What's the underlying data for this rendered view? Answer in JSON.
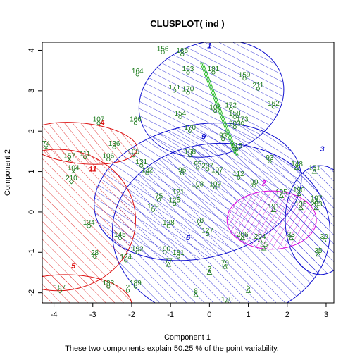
{
  "chart_data": {
    "type": "scatter",
    "title": "CLUSPLOT( ind )",
    "xlabel": "Component 1",
    "ylabel": "Component 2",
    "subtitle": "These two components explain 50.25 % of the point variability.",
    "xlim": [
      -4.3,
      3.2
    ],
    "ylim": [
      -2.25,
      4.2
    ],
    "x_ticks": [
      -4,
      -3,
      -2,
      -1,
      0,
      1,
      2,
      3
    ],
    "y_ticks": [
      -2,
      -1,
      0,
      1,
      2,
      3,
      4
    ],
    "colors": {
      "ellipse_blue": "#1010d0",
      "ellipse_red": "#dd1111",
      "ellipse_magenta": "#dd00dd",
      "points": "#1a7a1a",
      "connector": "#22bb22"
    },
    "clusters": [
      {
        "label": "1",
        "center": [
          0.05,
          2.8
        ],
        "rx": 1.9,
        "ry": 1.4,
        "angle": 18,
        "color": "ellipse_blue",
        "label_pos": [
          0.0,
          4.05
        ]
      },
      {
        "label": "9",
        "center": [
          -0.3,
          0.5
        ],
        "rx": 2.7,
        "ry": 1.65,
        "angle": 12,
        "color": "ellipse_blue",
        "label_pos": [
          -0.15,
          1.8
        ]
      },
      {
        "label": "6",
        "center": [
          0.3,
          -0.5
        ],
        "rx": 2.8,
        "ry": 2.2,
        "angle": 0,
        "color": "ellipse_blue",
        "label_pos": [
          -0.55,
          -0.7
        ]
      },
      {
        "label": "2",
        "center": [
          1.6,
          -0.2
        ],
        "rx": 1.15,
        "ry": 0.72,
        "angle": 0,
        "color": "ellipse_magenta",
        "label_pos": [
          1.4,
          0.65
        ]
      },
      {
        "label": "4",
        "center": [
          -3.3,
          1.7
        ],
        "rx": 1.45,
        "ry": 0.5,
        "angle": -6,
        "color": "ellipse_red",
        "label_pos": [
          -2.75,
          2.15
        ]
      },
      {
        "label": "11",
        "center": [
          -3.9,
          -0.2
        ],
        "rx": 2.0,
        "ry": 1.75,
        "angle": 0,
        "color": "ellipse_red",
        "label_pos": [
          -3.0,
          1.0
        ]
      },
      {
        "label": "5",
        "center": [
          -3.7,
          -2.3
        ],
        "rx": 1.7,
        "ry": 0.75,
        "angle": 0,
        "color": "ellipse_red",
        "label_pos": [
          -3.5,
          -1.4
        ]
      },
      {
        "label": "3",
        "center": [
          2.85,
          -0.2
        ],
        "rx": 0.9,
        "ry": 1.35,
        "angle": 0,
        "color": "ellipse_blue",
        "label_pos": [
          2.9,
          1.5
        ]
      }
    ],
    "connector": {
      "from": [
        -0.2,
        3.7
      ],
      "to": [
        0.7,
        1.4
      ]
    },
    "points": [
      {
        "label": "156",
        "x": -1.2,
        "y": 3.95,
        "shape": "circle"
      },
      {
        "label": "185",
        "x": -0.7,
        "y": 3.9,
        "shape": "circle"
      },
      {
        "label": "164",
        "x": -1.85,
        "y": 3.4,
        "shape": "circle"
      },
      {
        "label": "163",
        "x": -0.55,
        "y": 3.45,
        "shape": "circle"
      },
      {
        "label": "181",
        "x": 0.1,
        "y": 3.45,
        "shape": "circle"
      },
      {
        "label": "159",
        "x": 0.9,
        "y": 3.3,
        "shape": "circle"
      },
      {
        "label": "211",
        "x": 1.25,
        "y": 3.05,
        "shape": "circle"
      },
      {
        "label": "171",
        "x": -0.9,
        "y": 3.0,
        "shape": "circle"
      },
      {
        "label": "170",
        "x": -0.55,
        "y": 2.95,
        "shape": "circle"
      },
      {
        "label": "162",
        "x": 1.65,
        "y": 2.6,
        "shape": "circle"
      },
      {
        "label": "172",
        "x": 0.55,
        "y": 2.55,
        "shape": "circle"
      },
      {
        "label": "108",
        "x": 0.15,
        "y": 2.5,
        "shape": "circle"
      },
      {
        "label": "158",
        "x": 0.65,
        "y": 2.35,
        "shape": "circle"
      },
      {
        "label": "154",
        "x": -0.75,
        "y": 2.35,
        "shape": "circle"
      },
      {
        "label": "173",
        "x": 0.85,
        "y": 2.2,
        "shape": "circle"
      },
      {
        "label": "107",
        "x": -2.85,
        "y": 2.2,
        "shape": "circle"
      },
      {
        "label": "166",
        "x": -1.9,
        "y": 2.2,
        "shape": "circle"
      },
      {
        "label": "170",
        "x": -0.5,
        "y": 2.0,
        "shape": "circle"
      },
      {
        "label": "203",
        "x": 0.65,
        "y": 2.1,
        "shape": "circle"
      },
      {
        "label": "93",
        "x": 0.35,
        "y": 1.8,
        "shape": "circle"
      },
      {
        "label": "115",
        "x": 0.7,
        "y": 1.55,
        "shape": "circle"
      },
      {
        "label": "136",
        "x": -2.45,
        "y": 1.6,
        "shape": "circle"
      },
      {
        "label": "105",
        "x": -1.95,
        "y": 1.4,
        "shape": "circle"
      },
      {
        "label": "168",
        "x": -0.5,
        "y": 1.4,
        "shape": "circle"
      },
      {
        "label": "74",
        "x": -4.2,
        "y": 1.6,
        "shape": "x"
      },
      {
        "label": "111",
        "x": -3.2,
        "y": 1.35,
        "shape": "circle"
      },
      {
        "label": "106",
        "x": -2.6,
        "y": 1.3,
        "shape": "circle"
      },
      {
        "label": "157",
        "x": -3.6,
        "y": 1.3,
        "shape": "x"
      },
      {
        "label": "104",
        "x": -3.5,
        "y": 1.0,
        "shape": "x"
      },
      {
        "label": "131",
        "x": -1.75,
        "y": 1.15,
        "shape": "circle"
      },
      {
        "label": "132",
        "x": -1.6,
        "y": 0.95,
        "shape": "circle"
      },
      {
        "label": "95",
        "x": -0.3,
        "y": 1.1,
        "shape": "circle"
      },
      {
        "label": "207",
        "x": -0.05,
        "y": 1.05,
        "shape": "circle"
      },
      {
        "label": "96",
        "x": -0.7,
        "y": 0.95,
        "shape": "circle"
      },
      {
        "label": "197",
        "x": 0.2,
        "y": 0.95,
        "shape": "circle"
      },
      {
        "label": "93",
        "x": 1.55,
        "y": 1.25,
        "shape": "circle"
      },
      {
        "label": "210",
        "x": -3.55,
        "y": 0.75,
        "shape": "diamond"
      },
      {
        "label": "148",
        "x": 2.25,
        "y": 1.1,
        "shape": "triangle"
      },
      {
        "label": "151",
        "x": 2.7,
        "y": 1.0,
        "shape": "triangle"
      },
      {
        "label": "112",
        "x": 0.75,
        "y": 0.85,
        "shape": "circle"
      },
      {
        "label": "108",
        "x": -0.3,
        "y": 0.6,
        "shape": "circle"
      },
      {
        "label": "109",
        "x": 0.15,
        "y": 0.6,
        "shape": "circle"
      },
      {
        "label": "90",
        "x": 1.15,
        "y": 0.65,
        "shape": "circle"
      },
      {
        "label": "121",
        "x": -0.8,
        "y": 0.4,
        "shape": "circle"
      },
      {
        "label": "75",
        "x": -1.3,
        "y": 0.3,
        "shape": "circle"
      },
      {
        "label": "125",
        "x": -0.9,
        "y": 0.2,
        "shape": "circle"
      },
      {
        "label": "195",
        "x": 1.85,
        "y": 0.4,
        "shape": "triangle"
      },
      {
        "label": "190",
        "x": 2.3,
        "y": 0.45,
        "shape": "triangle"
      },
      {
        "label": "197",
        "x": 2.75,
        "y": 0.25,
        "shape": "triangle"
      },
      {
        "label": "129",
        "x": -1.45,
        "y": 0.05,
        "shape": "circle"
      },
      {
        "label": "191",
        "x": 1.65,
        "y": 0.05,
        "shape": "triangle"
      },
      {
        "label": "135",
        "x": 2.35,
        "y": 0.1,
        "shape": "triangle"
      },
      {
        "label": "203",
        "x": 2.75,
        "y": 0.1,
        "shape": "triangle"
      },
      {
        "label": "134",
        "x": -3.1,
        "y": -0.35,
        "shape": "diamond"
      },
      {
        "label": "128",
        "x": -1.05,
        "y": -0.35,
        "shape": "circle"
      },
      {
        "label": "78",
        "x": -0.25,
        "y": -0.3,
        "shape": "circle"
      },
      {
        "label": "145",
        "x": -2.3,
        "y": -0.65,
        "shape": "circle"
      },
      {
        "label": "127",
        "x": -0.05,
        "y": -0.55,
        "shape": "circle"
      },
      {
        "label": "206",
        "x": 0.85,
        "y": -0.65,
        "shape": "triangle"
      },
      {
        "label": "204",
        "x": 1.3,
        "y": -0.7,
        "shape": "triangle"
      },
      {
        "label": "33",
        "x": 2.1,
        "y": -0.65,
        "shape": "triangle"
      },
      {
        "label": "30",
        "x": 2.95,
        "y": -0.7,
        "shape": "triangle"
      },
      {
        "label": "35",
        "x": 1.4,
        "y": -0.9,
        "shape": "triangle"
      },
      {
        "label": "35",
        "x": 2.8,
        "y": -1.05,
        "shape": "triangle"
      },
      {
        "label": "192",
        "x": -1.85,
        "y": -1.0,
        "shape": "circle"
      },
      {
        "label": "190",
        "x": -1.15,
        "y": -1.0,
        "shape": "circle"
      },
      {
        "label": "181",
        "x": -0.8,
        "y": -1.1,
        "shape": "circle"
      },
      {
        "label": "28",
        "x": -2.95,
        "y": -1.1,
        "shape": "diamond"
      },
      {
        "label": "124",
        "x": -2.15,
        "y": -1.2,
        "shape": "circle"
      },
      {
        "label": "77",
        "x": -1.05,
        "y": -1.3,
        "shape": "triangle"
      },
      {
        "label": "79",
        "x": 0.4,
        "y": -1.35,
        "shape": "triangle"
      },
      {
        "label": "2",
        "x": 0.0,
        "y": -1.5,
        "shape": "triangle"
      },
      {
        "label": "183",
        "x": -2.6,
        "y": -1.85,
        "shape": "circle"
      },
      {
        "label": "189",
        "x": -1.9,
        "y": -1.85,
        "shape": "circle"
      },
      {
        "label": "187",
        "x": -3.85,
        "y": -1.95,
        "shape": "diamond"
      },
      {
        "label": "2",
        "x": -2.1,
        "y": -1.95,
        "shape": "circle"
      },
      {
        "label": "5",
        "x": 1.0,
        "y": -1.95,
        "shape": "triangle"
      },
      {
        "label": "8",
        "x": -0.35,
        "y": -2.05,
        "shape": "triangle"
      },
      {
        "label": "170",
        "x": 0.45,
        "y": -2.25,
        "shape": "circle"
      }
    ]
  }
}
